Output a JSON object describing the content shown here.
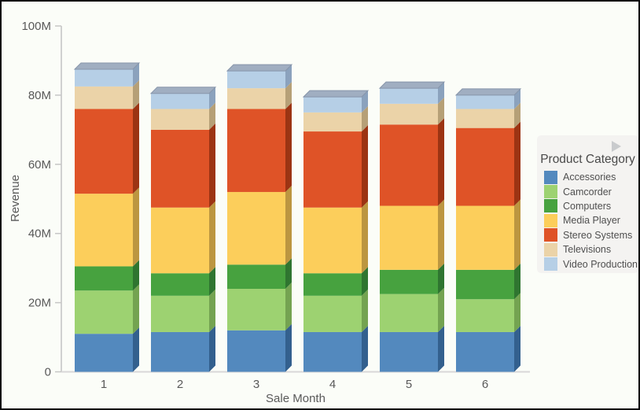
{
  "page": {
    "background": "#fbfdf8",
    "border_color": "#0a0a0a"
  },
  "chart_data": {
    "type": "bar",
    "stacked": true,
    "style": "3d-beveled",
    "xlabel": "Sale Month",
    "ylabel": "Revenue",
    "categories": [
      "1",
      "2",
      "3",
      "4",
      "5",
      "6"
    ],
    "ylim": [
      0,
      100
    ],
    "y_unit": "M",
    "y_ticks": [
      {
        "v": 0,
        "label": "0"
      },
      {
        "v": 20,
        "label": "20M"
      },
      {
        "v": 40,
        "label": "40M"
      },
      {
        "v": 60,
        "label": "60M"
      },
      {
        "v": 80,
        "label": "80M"
      },
      {
        "v": 100,
        "label": "100M"
      }
    ],
    "grid": false,
    "series": [
      {
        "name": "Accessories",
        "color": "#5389be",
        "side_color": "#33608e",
        "values": [
          11.0,
          11.5,
          12.0,
          11.5,
          11.5,
          11.5
        ]
      },
      {
        "name": "Camcorder",
        "color": "#9dd271",
        "side_color": "#74a351",
        "values": [
          12.5,
          10.5,
          12.0,
          10.5,
          11.0,
          9.5
        ]
      },
      {
        "name": "Computers",
        "color": "#47a23f",
        "side_color": "#2f7530",
        "values": [
          7.0,
          6.5,
          7.0,
          6.5,
          7.0,
          8.5
        ]
      },
      {
        "name": "Media Player",
        "color": "#fcce5b",
        "side_color": "#bc9640",
        "values": [
          21.0,
          19.0,
          21.0,
          19.0,
          18.5,
          18.5
        ]
      },
      {
        "name": "Stereo Systems",
        "color": "#df5327",
        "side_color": "#9c3413",
        "values": [
          24.5,
          22.5,
          24.0,
          22.0,
          23.5,
          22.5
        ]
      },
      {
        "name": "Televisions",
        "color": "#ebd3a8",
        "side_color": "#b6a077",
        "values": [
          6.5,
          6.0,
          6.0,
          5.5,
          6.0,
          5.5
        ]
      },
      {
        "name": "Video Production",
        "color": "#b6cfe6",
        "side_color": "#8ba2bd",
        "values": [
          5.0,
          4.5,
          5.0,
          4.5,
          4.5,
          4.0
        ]
      }
    ],
    "totals": [
      87.5,
      80.5,
      87.0,
      79.5,
      82.0,
      80.0
    ],
    "legend": {
      "title": "Product Category",
      "position": "right"
    },
    "bevel_top_color": "#a0aec1",
    "bevel_edge_color": "#8795aa",
    "axis_line_color": "#c6c6c6",
    "x_axis_line_color": "#d8d8d8",
    "text_color": "#595959"
  },
  "icons": {
    "legend_collapse": "right-pointing-triangle"
  }
}
